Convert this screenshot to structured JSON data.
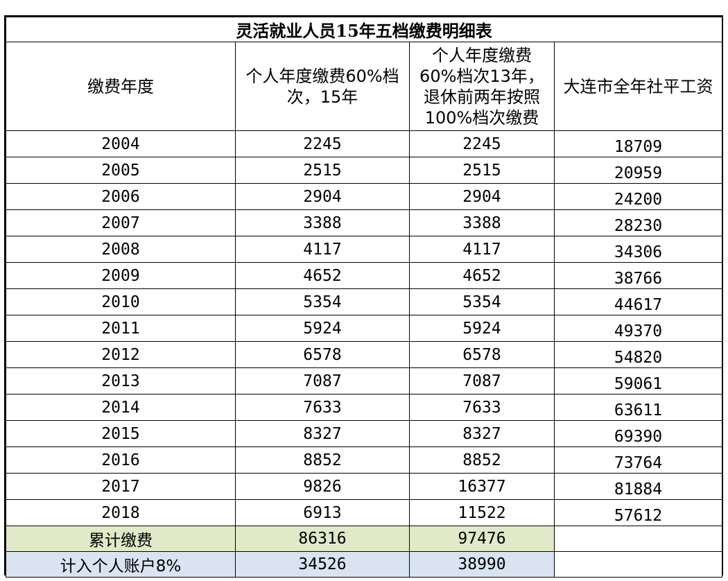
{
  "table": {
    "title": "灵活就业人员15年五档缴费明细表",
    "headers": [
      "缴费年度",
      "个人年度缴费60%档次，15年",
      "个人年度缴费60%档次13年，退休前两年按照100%档次缴费",
      "大连市全年社平工资"
    ],
    "rows": [
      {
        "year": "2004",
        "a": "2245",
        "b": "2245",
        "salary": "18709"
      },
      {
        "year": "2005",
        "a": "2515",
        "b": "2515",
        "salary": "20959"
      },
      {
        "year": "2006",
        "a": "2904",
        "b": "2904",
        "salary": "24200"
      },
      {
        "year": "2007",
        "a": "3388",
        "b": "3388",
        "salary": "28230"
      },
      {
        "year": "2008",
        "a": "4117",
        "b": "4117",
        "salary": "34306"
      },
      {
        "year": "2009",
        "a": "4652",
        "b": "4652",
        "salary": "38766"
      },
      {
        "year": "2010",
        "a": "5354",
        "b": "5354",
        "salary": "44617"
      },
      {
        "year": "2011",
        "a": "5924",
        "b": "5924",
        "salary": "49370"
      },
      {
        "year": "2012",
        "a": "6578",
        "b": "6578",
        "salary": "54820"
      },
      {
        "year": "2013",
        "a": "7087",
        "b": "7087",
        "salary": "59061"
      },
      {
        "year": "2014",
        "a": "7633",
        "b": "7633",
        "salary": "63611"
      },
      {
        "year": "2015",
        "a": "8327",
        "b": "8327",
        "salary": "69390"
      },
      {
        "year": "2016",
        "a": "8852",
        "b": "8852",
        "salary": "73764"
      },
      {
        "year": "2017",
        "a": "9826",
        "b": "16377",
        "salary": "81884"
      },
      {
        "year": "2018",
        "a": "6913",
        "b": "11522",
        "salary": "57612"
      }
    ],
    "totals": {
      "label": "累计缴费",
      "a": "86316",
      "b": "97476"
    },
    "account": {
      "label": "计入个人账户8%",
      "a": "34526",
      "b": "38990"
    }
  },
  "colors": {
    "totals_bg": "#e0e9c8",
    "account_bg": "#d9e3f1"
  }
}
